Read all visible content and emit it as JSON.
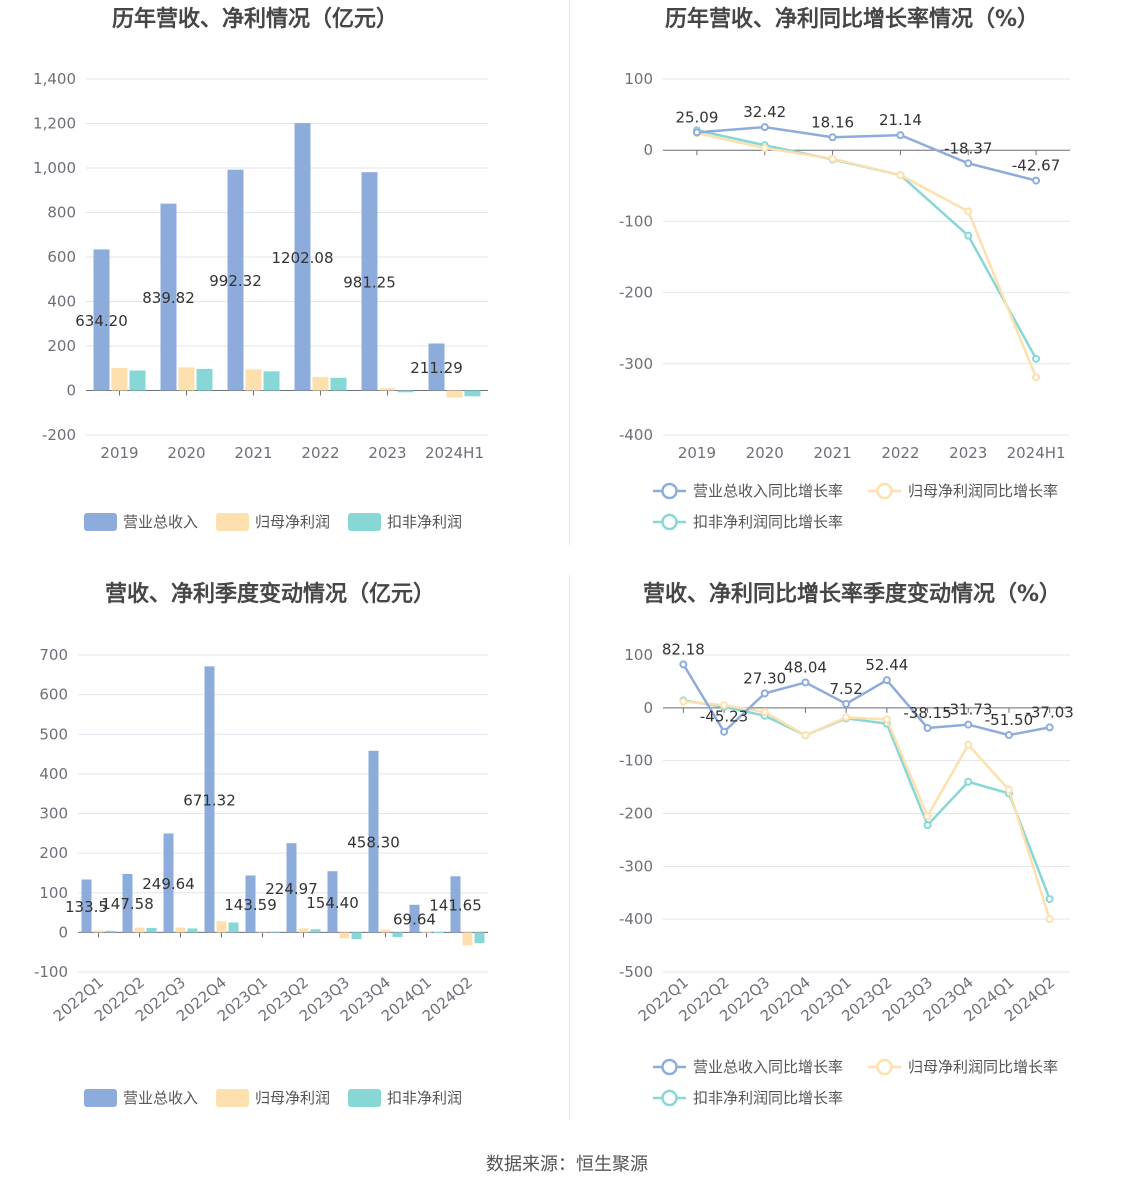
{
  "colors": {
    "revenue": "#8eacdb",
    "net_profit": "#fde0ad",
    "deducted_profit": "#87d7d6",
    "grid": "#e0e6f1",
    "axis": "#6e7079"
  },
  "source": "数据来源：恒生聚源",
  "chart_data": [
    {
      "id": "annual-values",
      "type": "bar",
      "title": "历年营收、净利情况（亿元）",
      "categories": [
        "2019",
        "2020",
        "2021",
        "2022",
        "2023",
        "2024H1"
      ],
      "series": [
        {
          "name": "营业总收入",
          "values": [
            634.2,
            839.82,
            992.32,
            1202.08,
            981.25,
            211.29
          ],
          "labels": [
            "634.20",
            "839.82",
            "992.32",
            "1202.08",
            "981.25",
            "211.29"
          ]
        },
        {
          "name": "归母净利润",
          "values": [
            101,
            104,
            95,
            61,
            10,
            -32
          ]
        },
        {
          "name": "扣非净利润",
          "values": [
            90,
            97,
            86,
            57,
            -8,
            -26
          ]
        }
      ],
      "ylim": [
        -200,
        1400
      ],
      "yticks": [
        -200,
        0,
        200,
        400,
        600,
        800,
        1000,
        1200,
        1400
      ],
      "ytick_labels": [
        "-200",
        "0",
        "200",
        "400",
        "600",
        "800",
        "1,000",
        "1,200",
        "1,400"
      ],
      "legend": "bottom"
    },
    {
      "id": "annual-growth",
      "type": "line",
      "title": "历年营收、净利同比增长率情况（%）",
      "categories": [
        "2019",
        "2020",
        "2021",
        "2022",
        "2023",
        "2024H1"
      ],
      "series": [
        {
          "name": "营业总收入同比增长率",
          "values": [
            25.09,
            32.42,
            18.16,
            21.14,
            -18.37,
            -42.67
          ],
          "labels": [
            "25.09",
            "32.42",
            "18.16",
            "21.14",
            "-18.37",
            "-42.67"
          ]
        },
        {
          "name": "归母净利润同比增长率",
          "values": [
            24,
            3,
            -12,
            -35,
            -86,
            -319
          ]
        },
        {
          "name": "扣非净利润同比增长率",
          "values": [
            28,
            7,
            -13,
            -35,
            -120,
            -293
          ]
        }
      ],
      "ylim": [
        -400,
        100
      ],
      "yticks": [
        -400,
        -300,
        -200,
        -100,
        0,
        100
      ],
      "ytick_labels": [
        "-400",
        "-300",
        "-200",
        "-100",
        "0",
        "100"
      ],
      "legend": "bottom"
    },
    {
      "id": "quarterly-values",
      "type": "bar",
      "title": "营收、净利季度变动情况（亿元）",
      "categories": [
        "2022Q1",
        "2022Q2",
        "2022Q3",
        "2022Q4",
        "2023Q1",
        "2023Q2",
        "2023Q3",
        "2023Q4",
        "2024Q1",
        "2024Q2"
      ],
      "series": [
        {
          "name": "营业总收入",
          "values": [
            133.5,
            147.58,
            249.64,
            671.32,
            143.59,
            224.97,
            154.4,
            458.3,
            69.64,
            141.65
          ],
          "labels": [
            "133.5",
            "147.58",
            "249.64",
            "671.32",
            "143.59",
            "224.97",
            "154.40",
            "458.30",
            "69.64",
            "141.65"
          ]
        },
        {
          "name": "归母净利润",
          "values": [
            5,
            12,
            12,
            28,
            3,
            10,
            -15,
            7,
            2,
            -33
          ]
        },
        {
          "name": "扣非净利润",
          "values": [
            4,
            11,
            10,
            25,
            2,
            8,
            -17,
            -12,
            1,
            -27
          ]
        }
      ],
      "ylim": [
        -100,
        700
      ],
      "yticks": [
        -100,
        0,
        100,
        200,
        300,
        400,
        500,
        600,
        700
      ],
      "ytick_labels": [
        "-100",
        "0",
        "100",
        "200",
        "300",
        "400",
        "500",
        "600",
        "700"
      ],
      "legend": "bottom"
    },
    {
      "id": "quarterly-growth",
      "type": "line",
      "title": "营收、净利同比增长率季度变动情况（%）",
      "categories": [
        "2022Q1",
        "2022Q2",
        "2022Q3",
        "2022Q4",
        "2023Q1",
        "2023Q2",
        "2023Q3",
        "2023Q4",
        "2024Q1",
        "2024Q2"
      ],
      "series": [
        {
          "name": "营业总收入同比增长率",
          "values": [
            82.18,
            -45.23,
            27.3,
            48.04,
            7.52,
            52.44,
            -38.15,
            -31.73,
            -51.5,
            -37.03
          ],
          "labels": [
            "82.18",
            "-45.23",
            "27.30",
            "48.04",
            "7.52",
            "52.44",
            "-38.15",
            "-31.73",
            "-51.50",
            "-37.03"
          ]
        },
        {
          "name": "归母净利润同比增长率",
          "values": [
            12,
            5,
            -8,
            -52,
            -18,
            -22,
            -205,
            -70,
            -155,
            -400
          ]
        },
        {
          "name": "扣非净利润同比增长率",
          "values": [
            14,
            2,
            -15,
            -52,
            -20,
            -30,
            -222,
            -140,
            -162,
            -362
          ]
        }
      ],
      "ylim": [
        -500,
        100
      ],
      "yticks": [
        -500,
        -400,
        -300,
        -200,
        -100,
        0,
        100
      ],
      "ytick_labels": [
        "-500",
        "-400",
        "-300",
        "-200",
        "-100",
        "0",
        "100"
      ],
      "legend": "bottom"
    }
  ]
}
